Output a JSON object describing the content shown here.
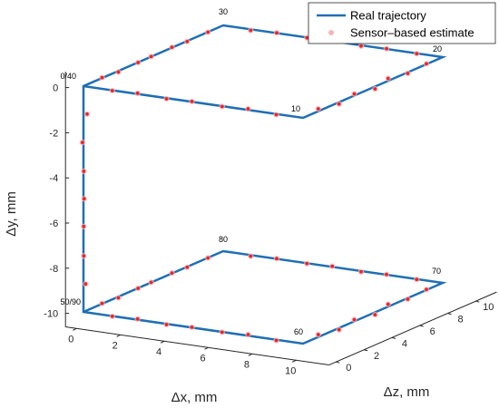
{
  "chart_data": {
    "type": "line3d",
    "title": "",
    "axes": {
      "x": {
        "label": "Δx, mm",
        "ticks": [
          0,
          2,
          4,
          6,
          8,
          10
        ],
        "range": [
          -0.5,
          11.5
        ]
      },
      "y": {
        "label": "Δy, mm",
        "ticks": [
          0,
          -2,
          -4,
          -6,
          -8,
          -10
        ],
        "range": [
          -10.6,
          0.7
        ]
      },
      "z": {
        "label": "Δz, mm",
        "ticks": [
          0,
          2,
          4,
          6,
          8,
          10
        ],
        "range": [
          -0.5,
          11.5
        ]
      }
    },
    "legend": {
      "position": "top-right",
      "entries": [
        {
          "label": "Real trajectory",
          "color": "#1f6fb4",
          "style": "line"
        },
        {
          "label": "Sensor–based estimate",
          "color": "#f5b6b6",
          "style": "marker"
        }
      ]
    },
    "series": [
      {
        "name": "Real trajectory",
        "color": "#1f6fb4",
        "points": [
          {
            "x": 0,
            "y": 0,
            "z": 0
          },
          {
            "x": 10,
            "y": 0,
            "z": 0
          },
          {
            "x": 10,
            "y": 0,
            "z": 10
          },
          {
            "x": 0,
            "y": 0,
            "z": 10
          },
          {
            "x": 0,
            "y": 0,
            "z": 0
          },
          {
            "x": 0,
            "y": -10,
            "z": 0
          },
          {
            "x": 10,
            "y": -10,
            "z": 0
          },
          {
            "x": 10,
            "y": -10,
            "z": 10
          },
          {
            "x": 0,
            "y": -10,
            "z": 10
          },
          {
            "x": 0,
            "y": -10,
            "z": 0
          }
        ]
      },
      {
        "name": "Sensor–based estimate",
        "color": "#e8262b",
        "sampling": "8 samples per 10 mm segment (approximate)",
        "points": [
          {
            "x": 1.25,
            "y": -0.05,
            "z": 0.1
          },
          {
            "x": 2.5,
            "y": 0.05,
            "z": -0.05
          },
          {
            "x": 3.75,
            "y": -0.05,
            "z": 0.05
          },
          {
            "x": 5,
            "y": 0.05,
            "z": -0.1
          },
          {
            "x": 6.25,
            "y": -0.05,
            "z": 0.1
          },
          {
            "x": 7.5,
            "y": 0.05,
            "z": 0
          },
          {
            "x": 8.75,
            "y": -0.05,
            "z": 0.05
          },
          {
            "x": 9.9,
            "y": 0.05,
            "z": 1.25
          },
          {
            "x": 10.05,
            "y": -0.05,
            "z": 2.5
          },
          {
            "x": 9.95,
            "y": 0.05,
            "z": 3.75
          },
          {
            "x": 10.1,
            "y": -0.05,
            "z": 5
          },
          {
            "x": 9.9,
            "y": 0.05,
            "z": 6.25
          },
          {
            "x": 10,
            "y": -0.05,
            "z": 7.5
          },
          {
            "x": 10.05,
            "y": 0.05,
            "z": 8.75
          },
          {
            "x": 8.75,
            "y": -0.05,
            "z": 10.1
          },
          {
            "x": 7.5,
            "y": 0.05,
            "z": 9.9
          },
          {
            "x": 6.25,
            "y": -0.05,
            "z": 10.05
          },
          {
            "x": 5,
            "y": 0.05,
            "z": 9.95
          },
          {
            "x": 3.75,
            "y": -0.05,
            "z": 10.1
          },
          {
            "x": 2.5,
            "y": 0.05,
            "z": 9.9
          },
          {
            "x": 1.25,
            "y": -0.05,
            "z": 10
          },
          {
            "x": 0.1,
            "y": 0.05,
            "z": 8.75
          },
          {
            "x": -0.05,
            "y": -0.05,
            "z": 7.5
          },
          {
            "x": 0.05,
            "y": 0.05,
            "z": 6.25
          },
          {
            "x": -0.1,
            "y": -0.05,
            "z": 5
          },
          {
            "x": 0.1,
            "y": 0.05,
            "z": 3.75
          },
          {
            "x": 0,
            "y": -0.05,
            "z": 2.5
          },
          {
            "x": 0.05,
            "y": 0.05,
            "z": 1.25
          },
          {
            "x": 0.1,
            "y": -1.25,
            "z": 0.1
          },
          {
            "x": -0.05,
            "y": -2.5,
            "z": 0
          },
          {
            "x": 0.05,
            "y": -3.75,
            "z": -0.05
          },
          {
            "x": 0,
            "y": -5,
            "z": 0.05
          },
          {
            "x": -0.05,
            "y": -6.25,
            "z": 0.1
          },
          {
            "x": 0.05,
            "y": -7.5,
            "z": -0.05
          },
          {
            "x": 0.1,
            "y": -8.75,
            "z": 0
          },
          {
            "x": 1.25,
            "y": -10.05,
            "z": 0.1
          },
          {
            "x": 2.5,
            "y": -9.95,
            "z": -0.05
          },
          {
            "x": 3.75,
            "y": -10.05,
            "z": 0.05
          },
          {
            "x": 5,
            "y": -9.95,
            "z": -0.1
          },
          {
            "x": 6.25,
            "y": -10.05,
            "z": 0.1
          },
          {
            "x": 7.5,
            "y": -9.95,
            "z": 0
          },
          {
            "x": 8.75,
            "y": -10.05,
            "z": 0.05
          },
          {
            "x": 9.9,
            "y": -9.95,
            "z": 1.25
          },
          {
            "x": 10.05,
            "y": -10.05,
            "z": 2.5
          },
          {
            "x": 9.95,
            "y": -9.95,
            "z": 3.75
          },
          {
            "x": 10.1,
            "y": -10.05,
            "z": 5
          },
          {
            "x": 9.9,
            "y": -9.95,
            "z": 6.25
          },
          {
            "x": 10,
            "y": -10.05,
            "z": 7.5
          },
          {
            "x": 10.05,
            "y": -9.95,
            "z": 8.75
          },
          {
            "x": 8.75,
            "y": -10.05,
            "z": 10.1
          },
          {
            "x": 7.5,
            "y": -9.95,
            "z": 9.9
          },
          {
            "x": 6.25,
            "y": -10.05,
            "z": 10.05
          },
          {
            "x": 5,
            "y": -9.95,
            "z": 9.95
          },
          {
            "x": 3.75,
            "y": -10.05,
            "z": 10.1
          },
          {
            "x": 2.5,
            "y": -9.95,
            "z": 9.9
          },
          {
            "x": 1.25,
            "y": -10.05,
            "z": 10
          },
          {
            "x": 0.1,
            "y": -9.95,
            "z": 8.75
          },
          {
            "x": -0.05,
            "y": -10.05,
            "z": 7.5
          },
          {
            "x": 0.05,
            "y": -9.95,
            "z": 6.25
          },
          {
            "x": -0.1,
            "y": -10.05,
            "z": 5
          },
          {
            "x": 0.1,
            "y": -9.95,
            "z": 3.75
          },
          {
            "x": 0,
            "y": -10.05,
            "z": 2.5
          },
          {
            "x": 0.05,
            "y": -9.95,
            "z": 1.25
          }
        ]
      }
    ],
    "annotations": [
      {
        "text": "0/40",
        "x": 0,
        "y": 0,
        "z": 0
      },
      {
        "text": "10",
        "x": 10,
        "y": 0,
        "z": 0
      },
      {
        "text": "20",
        "x": 10,
        "y": 0,
        "z": 10
      },
      {
        "text": "30",
        "x": 0,
        "y": 0,
        "z": 10
      },
      {
        "text": "50/90",
        "x": 0,
        "y": -10,
        "z": 0
      },
      {
        "text": "60",
        "x": 10,
        "y": -10,
        "z": 0
      },
      {
        "text": "70",
        "x": 10,
        "y": -10,
        "z": 10
      },
      {
        "text": "80",
        "x": 0,
        "y": -10,
        "z": 10
      }
    ]
  }
}
